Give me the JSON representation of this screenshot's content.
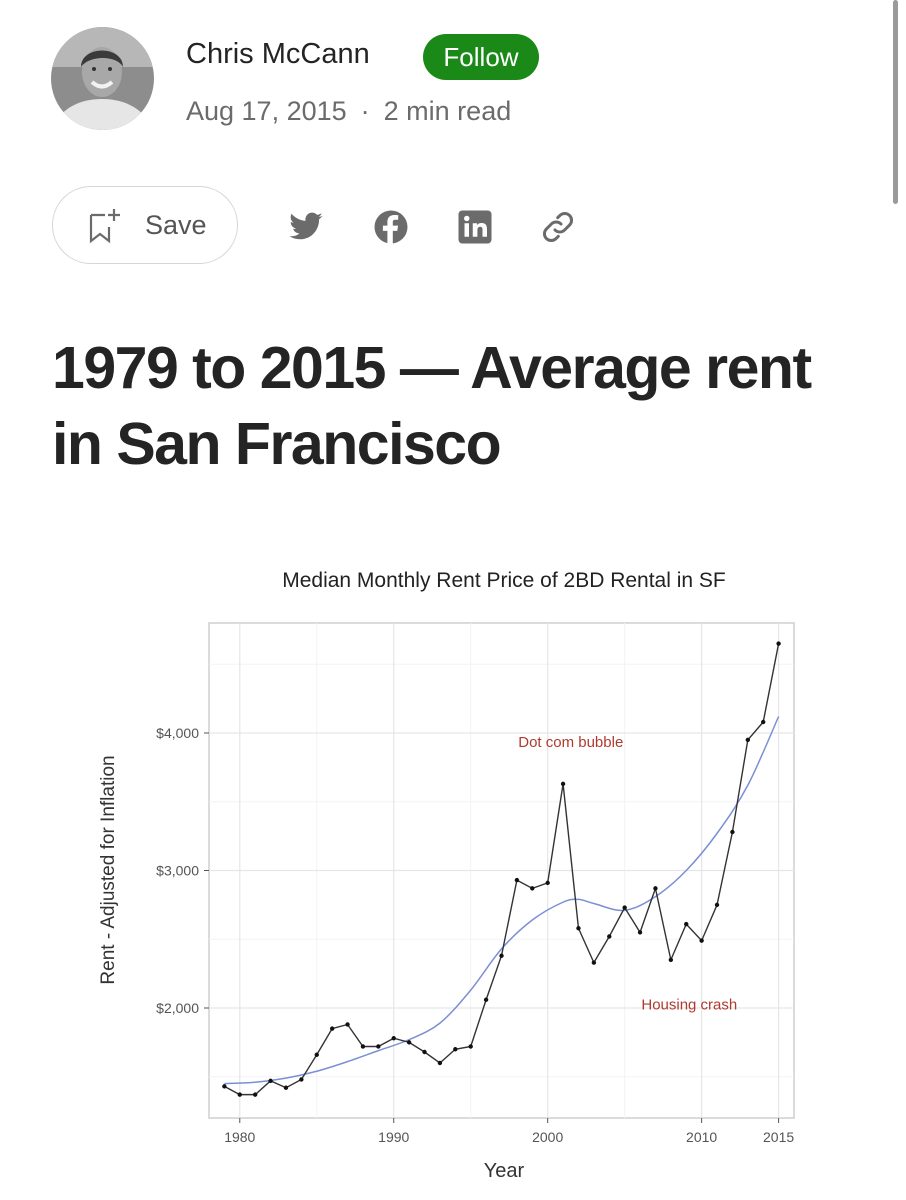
{
  "author": {
    "name": "Chris McCann",
    "follow_label": "Follow",
    "date": "Aug 17, 2015",
    "separator": "·",
    "read_time": "2 min read"
  },
  "actions": {
    "save_label": "Save",
    "icons": [
      "bookmark-add-icon",
      "twitter-icon",
      "facebook-icon",
      "linkedin-icon",
      "link-icon"
    ]
  },
  "article": {
    "title": "1979 to 2015 — Average rent in San Francisco"
  },
  "colors": {
    "follow_green": "#1a8917",
    "series_line": "#333333",
    "smooth_line": "#7b8fd4",
    "annotation_red": "#b03a2e"
  },
  "chart_data": {
    "type": "line",
    "title": "Median Monthly Rent Price of 2BD Rental in SF",
    "xlabel": "Year",
    "ylabel": "Rent - Adjusted for Inflation",
    "xlim": [
      1978,
      2016
    ],
    "ylim": [
      1200,
      4800
    ],
    "x_ticks": [
      1980,
      1990,
      2000,
      2010,
      2015
    ],
    "x_tick_labels": [
      "1980",
      "1990",
      "2000",
      "2010",
      "2015"
    ],
    "y_ticks": [
      2000,
      3000,
      4000
    ],
    "y_tick_labels": [
      "$2,000",
      "$3,000",
      "$4,000"
    ],
    "grid": true,
    "series": [
      {
        "x": [
          1979,
          1980,
          1981,
          1982,
          1983,
          1984,
          1985,
          1986,
          1987,
          1988,
          1989,
          1990,
          1991,
          1992,
          1993,
          1994,
          1995,
          1996,
          1997,
          1998,
          1999,
          2000,
          2001,
          2002,
          2003,
          2004,
          2005,
          2006,
          2007,
          2008,
          2009,
          2010,
          2011,
          2012,
          2013,
          2014,
          2015
        ],
        "values": [
          1430,
          1370,
          1370,
          1470,
          1420,
          1480,
          1660,
          1850,
          1880,
          1720,
          1720,
          1780,
          1750,
          1680,
          1600,
          1700,
          1720,
          2060,
          2380,
          2930,
          2870,
          2910,
          3630,
          2580,
          2330,
          2520,
          2730,
          2550,
          2870,
          2350,
          2610,
          2490,
          2750,
          3280,
          3950,
          4080,
          4650
        ]
      },
      {
        "x": [
          1979,
          1981,
          1983,
          1985,
          1987,
          1989,
          1991,
          1993,
          1995,
          1997,
          1999,
          2001,
          2002,
          2003,
          2005,
          2007,
          2009,
          2011,
          2013,
          2015
        ],
        "values": [
          1450,
          1460,
          1490,
          1540,
          1610,
          1690,
          1770,
          1890,
          2130,
          2430,
          2640,
          2770,
          2790,
          2760,
          2710,
          2810,
          3000,
          3270,
          3620,
          4120
        ]
      }
    ],
    "annotations": [
      {
        "text": "Dot com bubble",
        "x": 2001.5,
        "y": 3900
      },
      {
        "text": "Housing crash",
        "x": 2009.2,
        "y": 1990
      }
    ]
  }
}
